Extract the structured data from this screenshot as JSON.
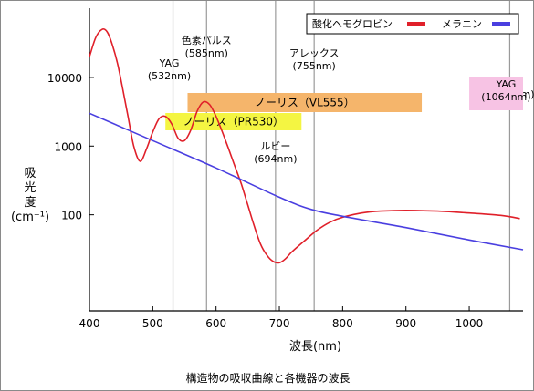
{
  "chart_data": {
    "type": "line",
    "title": "",
    "xlabel": "波長(nm)",
    "ylabel_lines": [
      "吸",
      "光",
      "度",
      "(cm⁻¹)"
    ],
    "x_ticks": [
      400,
      500,
      600,
      700,
      800,
      900,
      1000
    ],
    "y_ticks": [
      {
        "value": 100,
        "label": "100"
      },
      {
        "value": 1000,
        "label": "1000"
      },
      {
        "value": 10000,
        "label": "10000"
      }
    ],
    "xlim": [
      400,
      1085
    ],
    "ylim": [
      4,
      90000
    ],
    "y_scale": "log",
    "grid": false,
    "legend_position": "top-right",
    "series": [
      {
        "name": "酸化ヘモグロビン",
        "color": "#e0202a",
        "x": [
          400,
          410,
          420,
          428,
          435,
          445,
          460,
          470,
          480,
          490,
          500,
          510,
          520,
          530,
          540,
          550,
          560,
          570,
          580,
          590,
          600,
          610,
          620,
          630,
          640,
          650,
          660,
          670,
          680,
          690,
          700,
          710,
          720,
          740,
          760,
          780,
          800,
          830,
          860,
          900,
          950,
          1000,
          1050,
          1080
        ],
        "y": [
          20000,
          38000,
          50000,
          46000,
          32000,
          15000,
          3000,
          1000,
          600,
          900,
          1600,
          2500,
          2700,
          2100,
          1300,
          1200,
          1700,
          3200,
          4400,
          4000,
          2700,
          1600,
          900,
          500,
          280,
          140,
          70,
          38,
          26,
          21,
          20,
          23,
          29,
          42,
          60,
          78,
          92,
          106,
          113,
          116,
          113,
          106,
          98,
          88
        ]
      },
      {
        "name": "メラニン",
        "color": "#4a3fe0",
        "x": [
          400,
          500,
          600,
          700,
          750,
          800,
          900,
          1000,
          1085
        ],
        "y": [
          3000,
          1200,
          480,
          180,
          120,
          95,
          65,
          43,
          31
        ]
      }
    ],
    "vlines": [
      {
        "x": 532,
        "label_lines": [
          "YAG",
          "(532nm)"
        ]
      },
      {
        "x": 585,
        "label_lines": [
          "色素パルス",
          "(585nm)"
        ]
      },
      {
        "x": 694,
        "label_lines": [
          "ルビー",
          "(694nm)"
        ]
      },
      {
        "x": 755,
        "label_lines": [
          "アレックス",
          "(755nm)"
        ]
      },
      {
        "x": 1064,
        "label_lines": [
          "YAG",
          "(1064nm)"
        ]
      }
    ],
    "bands": [
      {
        "label": "ノーリス（VL555）",
        "x_start": 555,
        "x_end": 925,
        "color": "#f5b56b"
      },
      {
        "label": "ノーリス（PR530）",
        "x_start": 520,
        "x_end": 735,
        "color": "#f4f542"
      },
      {
        "label": "",
        "x_start": 1000,
        "x_end": 1085,
        "color": "#f7c3e4"
      }
    ]
  },
  "caption": "構造物の吸収曲線と各機器の波長"
}
